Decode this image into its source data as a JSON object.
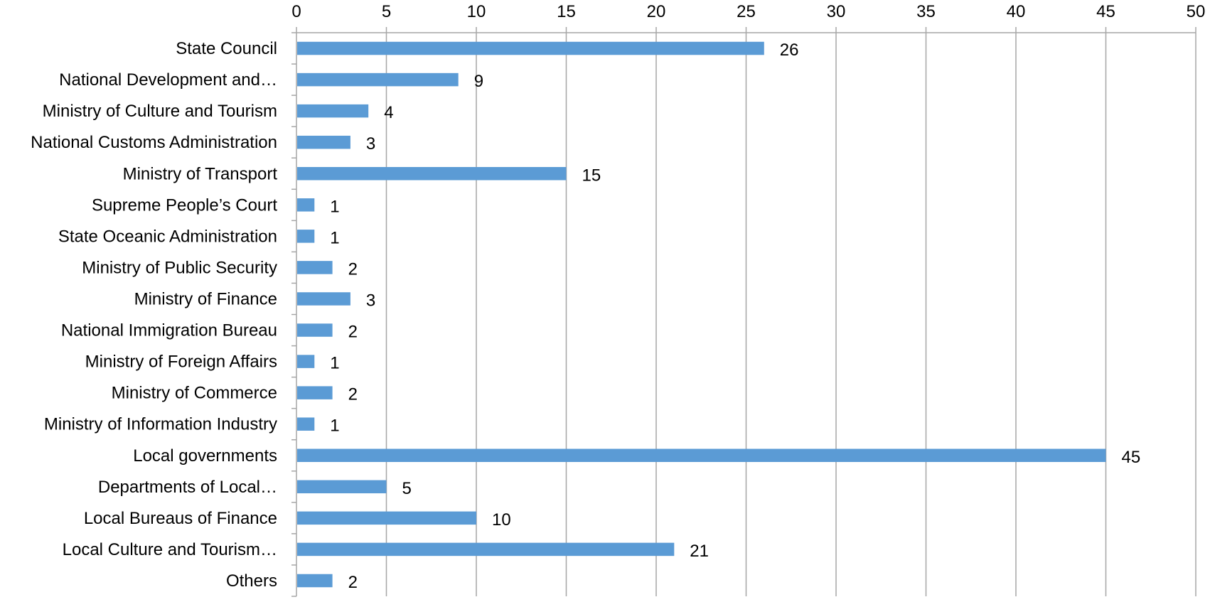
{
  "chart_data": {
    "type": "bar",
    "orientation": "horizontal",
    "categories": [
      "State Council",
      "National Development and…",
      "Ministry of Culture and Tourism",
      "National Customs Administration",
      "Ministry of Transport",
      "Supreme People’s Court",
      "State Oceanic Administration",
      "Ministry of Public Security",
      "Ministry of Finance",
      "National Immigration Bureau",
      "Ministry of Foreign Affairs",
      "Ministry of Commerce",
      "Ministry of Information Industry",
      "Local governments",
      "Departments of Local…",
      "Local Bureaus of Finance",
      "Local Culture and Tourism…",
      "Others"
    ],
    "values": [
      26,
      9,
      4,
      3,
      15,
      1,
      1,
      2,
      3,
      2,
      1,
      2,
      1,
      45,
      5,
      10,
      21,
      2
    ],
    "x_ticks": [
      "0",
      "5",
      "10",
      "15",
      "20",
      "25",
      "30",
      "35",
      "40",
      "45",
      "50"
    ],
    "xlim": [
      0,
      50
    ],
    "x_axis_position": "top",
    "grid": true,
    "legend": "none",
    "data_labels": true,
    "colors": {
      "bar": "#5B9BD5",
      "grid": "#A6A6A6",
      "axis": "#A6A6A6",
      "text": "#000000"
    }
  }
}
